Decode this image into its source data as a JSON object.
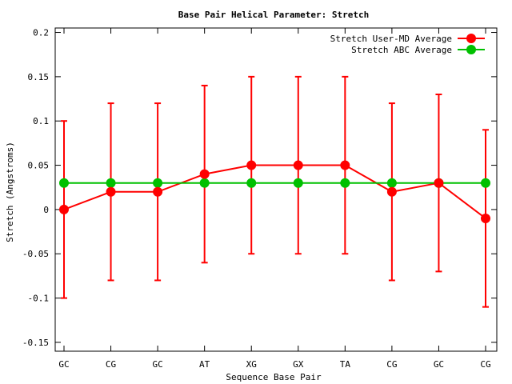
{
  "chart_data": {
    "type": "line",
    "title": "Base Pair Helical Parameter: Stretch",
    "xlabel": "Sequence Base Pair",
    "ylabel": "Stretch (Angstroms)",
    "categories": [
      "GC",
      "CG",
      "GC",
      "AT",
      "XG",
      "GX",
      "TA",
      "CG",
      "GC",
      "CG"
    ],
    "ylim": [
      -0.16,
      0.205
    ],
    "yticks": [
      -0.15,
      -0.1,
      -0.05,
      0,
      0.05,
      0.1,
      0.15,
      0.2
    ],
    "ytick_labels": [
      "-0.15",
      "-0.1",
      "-0.05",
      "0",
      "0.05",
      "0.1",
      "0.15",
      "0.2"
    ],
    "grid": false,
    "legend_position": "top-right",
    "series": [
      {
        "name": "Stretch User-MD Average",
        "color": "#ff0000",
        "values": [
          0.0,
          0.02,
          0.02,
          0.04,
          0.05,
          0.05,
          0.05,
          0.02,
          0.03,
          -0.01
        ],
        "error_low": [
          -0.1,
          -0.08,
          -0.08,
          -0.06,
          -0.05,
          -0.05,
          -0.05,
          -0.08,
          -0.07,
          -0.11
        ],
        "error_high": [
          0.1,
          0.12,
          0.12,
          0.14,
          0.15,
          0.15,
          0.15,
          0.12,
          0.13,
          0.09
        ]
      },
      {
        "name": "Stretch ABC Average",
        "color": "#00c000",
        "values": [
          0.03,
          0.03,
          0.03,
          0.03,
          0.03,
          0.03,
          0.03,
          0.03,
          0.03,
          0.03
        ]
      }
    ]
  }
}
